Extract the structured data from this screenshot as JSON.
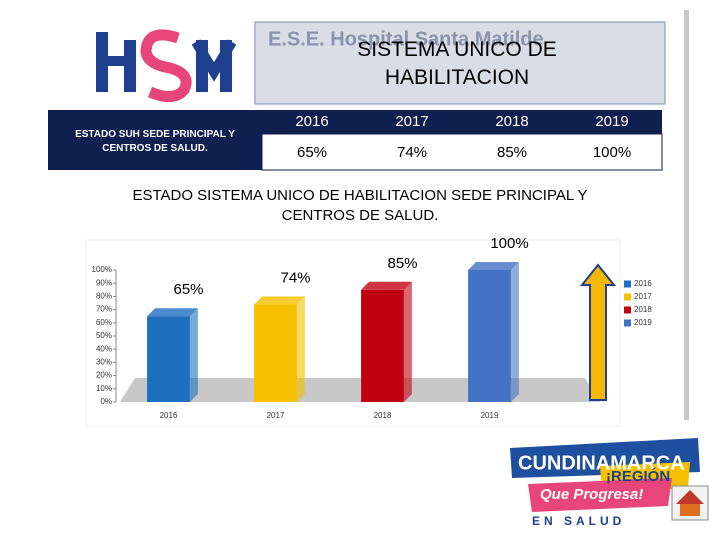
{
  "header": {
    "banner": "E.S.E. Hospital Santa Matilde",
    "title": "SISTEMA UNICO DE HABILITACION"
  },
  "table": {
    "row_label": "ESTADO SUH SEDE PRINCIPAL Y CENTROS DE SALUD.",
    "columns": [
      "2016",
      "2017",
      "2018",
      "2019"
    ],
    "values": [
      "65%",
      "74%",
      "85%",
      "100%"
    ]
  },
  "chart_data": {
    "type": "bar",
    "title": "ESTADO SISTEMA UNICO DE HABILITACION SEDE PRINCIPAL Y CENTROS DE SALUD.",
    "categories": [
      "2016",
      "2017",
      "2018",
      "2019"
    ],
    "values": [
      65,
      74,
      85,
      100
    ],
    "value_labels": [
      "65%",
      "74%",
      "85%",
      "100%"
    ],
    "colors": [
      "#1f6fbf",
      "#f5c000",
      "#c00010",
      "#4472c4"
    ],
    "ylim": [
      0,
      100
    ],
    "yticks": [
      {
        "value": 0,
        "label": "0%"
      },
      {
        "value": 10,
        "label": "10%"
      },
      {
        "value": 20,
        "label": "20%"
      },
      {
        "value": 30,
        "label": "30%"
      },
      {
        "value": 40,
        "label": "40%"
      },
      {
        "value": 50,
        "label": "50%"
      },
      {
        "value": 60,
        "label": "60%"
      },
      {
        "value": 70,
        "label": "70%"
      },
      {
        "value": 80,
        "label": "80%"
      },
      {
        "value": 90,
        "label": "90%"
      },
      {
        "value": 100,
        "label": "100%"
      }
    ],
    "legend": "right"
  },
  "footer": {
    "brand": "CUNDINAMARCA",
    "slogan": "¡REGIÓN",
    "motto": "Que Progresa!",
    "tagline": "EN SALUD"
  }
}
